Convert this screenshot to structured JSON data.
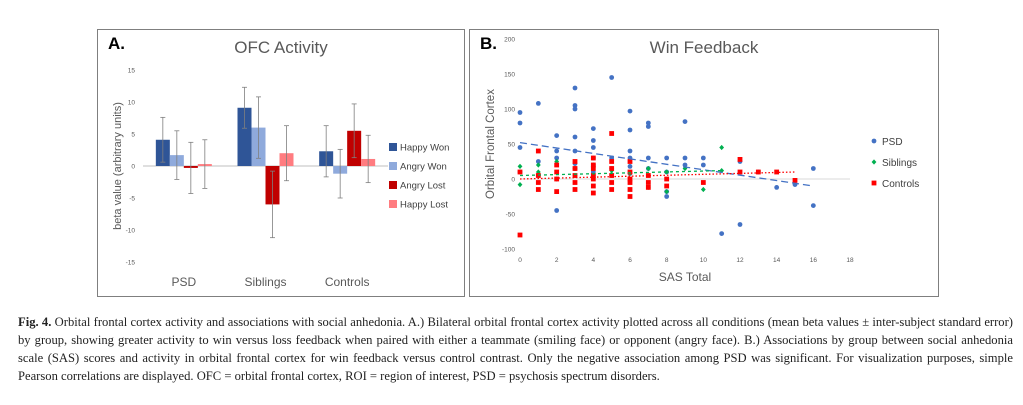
{
  "chart_data": [
    {
      "type": "bar",
      "panel_label": "A.",
      "title": "OFC Activity",
      "ylabel": "beta value (arbitrary units)",
      "xlabel": "",
      "ylim": [
        -15,
        15
      ],
      "yticks": [
        -15,
        -10,
        -5,
        0,
        5,
        10,
        15
      ],
      "categories": [
        "PSD",
        "Siblings",
        "Controls"
      ],
      "series": [
        {
          "name": "Happy Won",
          "color": "#2f5597",
          "values": [
            4.1,
            9.1,
            2.3
          ],
          "errors": [
            3.5,
            3.2,
            4.0
          ]
        },
        {
          "name": "Angry Won",
          "color": "#8faadc",
          "values": [
            1.7,
            6.0,
            -1.2
          ],
          "errors": [
            3.8,
            4.8,
            3.8
          ]
        },
        {
          "name": "Angry Lost",
          "color": "#c00000",
          "values": [
            -0.3,
            -6.0,
            5.5
          ],
          "errors": [
            4.0,
            5.2,
            4.2
          ]
        },
        {
          "name": "Happy Lost",
          "color": "#ff7c80",
          "values": [
            0.3,
            2.0,
            1.1
          ],
          "errors": [
            3.8,
            4.3,
            3.7
          ]
        }
      ],
      "legend_position": "right"
    },
    {
      "type": "scatter",
      "panel_label": "B.",
      "title": "Win Feedback",
      "xlabel": "SAS Total",
      "ylabel": "Orbital Frontal Cortex",
      "xlim": [
        0,
        18
      ],
      "ylim": [
        -100,
        200
      ],
      "xticks": [
        0,
        2,
        4,
        6,
        8,
        10,
        12,
        14,
        16,
        18
      ],
      "yticks": [
        -100,
        -50,
        0,
        50,
        100,
        150,
        200
      ],
      "legend_position": "right",
      "series": [
        {
          "name": "PSD",
          "color": "#4472c4",
          "marker": "circle",
          "trend": [
            [
              0,
              52
            ],
            [
              16,
              -10
            ]
          ],
          "points": [
            [
              0,
              95
            ],
            [
              0,
              80
            ],
            [
              0,
              45
            ],
            [
              0,
              10
            ],
            [
              1,
              108
            ],
            [
              1,
              25
            ],
            [
              1,
              5
            ],
            [
              2,
              62
            ],
            [
              2,
              40
            ],
            [
              2,
              30
            ],
            [
              2,
              -45
            ],
            [
              3,
              130
            ],
            [
              3,
              105
            ],
            [
              3,
              100
            ],
            [
              3,
              60
            ],
            [
              3,
              40
            ],
            [
              3,
              22
            ],
            [
              3,
              15
            ],
            [
              4,
              72
            ],
            [
              4,
              55
            ],
            [
              4,
              45
            ],
            [
              4,
              30
            ],
            [
              4,
              20
            ],
            [
              4,
              10
            ],
            [
              4,
              5
            ],
            [
              5,
              145
            ],
            [
              5,
              30
            ],
            [
              5,
              15
            ],
            [
              5,
              5
            ],
            [
              6,
              97
            ],
            [
              6,
              70
            ],
            [
              6,
              40
            ],
            [
              6,
              30
            ],
            [
              6,
              18
            ],
            [
              6,
              8
            ],
            [
              7,
              80
            ],
            [
              7,
              75
            ],
            [
              7,
              30
            ],
            [
              7,
              15
            ],
            [
              8,
              30
            ],
            [
              8,
              10
            ],
            [
              8,
              -18
            ],
            [
              8,
              -25
            ],
            [
              9,
              82
            ],
            [
              9,
              30
            ],
            [
              9,
              20
            ],
            [
              10,
              30
            ],
            [
              10,
              20
            ],
            [
              11,
              -78
            ],
            [
              12,
              -65
            ],
            [
              12,
              25
            ],
            [
              13,
              10
            ],
            [
              14,
              -12
            ],
            [
              15,
              -8
            ],
            [
              16,
              15
            ],
            [
              16,
              -38
            ]
          ]
        },
        {
          "name": "Siblings",
          "color": "#00b050",
          "marker": "diamond",
          "trend": [
            [
              0,
              5
            ],
            [
              11,
              12
            ]
          ],
          "points": [
            [
              0,
              18
            ],
            [
              0,
              -8
            ],
            [
              1,
              20
            ],
            [
              1,
              10
            ],
            [
              2,
              25
            ],
            [
              2,
              0
            ],
            [
              3,
              15
            ],
            [
              3,
              5
            ],
            [
              4,
              20
            ],
            [
              4,
              2
            ],
            [
              5,
              12
            ],
            [
              6,
              8
            ],
            [
              7,
              15
            ],
            [
              7,
              -12
            ],
            [
              8,
              10
            ],
            [
              8,
              -18
            ],
            [
              9,
              15
            ],
            [
              10,
              -15
            ],
            [
              11,
              45
            ],
            [
              11,
              12
            ]
          ]
        },
        {
          "name": "Controls",
          "color": "#ff0000",
          "marker": "square",
          "trend": [
            [
              0,
              0
            ],
            [
              15,
              10
            ]
          ],
          "points": [
            [
              0,
              -80
            ],
            [
              0,
              10
            ],
            [
              1,
              40
            ],
            [
              1,
              5
            ],
            [
              1,
              -5
            ],
            [
              1,
              -15
            ],
            [
              2,
              20
            ],
            [
              2,
              10
            ],
            [
              2,
              0
            ],
            [
              2,
              -18
            ],
            [
              3,
              25
            ],
            [
              3,
              15
            ],
            [
              3,
              5
            ],
            [
              3,
              -5
            ],
            [
              3,
              -15
            ],
            [
              4,
              30
            ],
            [
              4,
              20
            ],
            [
              4,
              15
            ],
            [
              4,
              5
            ],
            [
              4,
              0
            ],
            [
              4,
              -10
            ],
            [
              4,
              -20
            ],
            [
              5,
              65
            ],
            [
              5,
              25
            ],
            [
              5,
              15
            ],
            [
              5,
              5
            ],
            [
              5,
              -5
            ],
            [
              5,
              -15
            ],
            [
              6,
              25
            ],
            [
              6,
              10
            ],
            [
              6,
              0
            ],
            [
              6,
              -5
            ],
            [
              6,
              -15
            ],
            [
              6,
              -25
            ],
            [
              7,
              5
            ],
            [
              7,
              -5
            ],
            [
              7,
              -12
            ],
            [
              8,
              0
            ],
            [
              8,
              -10
            ],
            [
              10,
              -5
            ],
            [
              12,
              28
            ],
            [
              12,
              10
            ],
            [
              13,
              10
            ],
            [
              14,
              10
            ],
            [
              15,
              -2
            ]
          ]
        }
      ]
    }
  ],
  "caption": {
    "fig_label": "Fig. 4.",
    "text": " Orbital frontal cortex activity and associations with social anhedonia. A.) Bilateral orbital frontal cortex activity plotted across all conditions (mean beta values ± inter-subject standard error) by group, showing greater activity to win versus loss feedback when paired with either a teammate (smiling face) or opponent (angry face). B.) Associations by group between social anhedonia scale (SAS) scores and activity in orbital frontal cortex for win feedback versus control contrast. Only the negative association among PSD was significant. For visualization purposes, simple Pearson correlations are displayed. OFC = orbital frontal cortex, ROI = region of interest, PSD = psychosis spectrum disorders."
  }
}
